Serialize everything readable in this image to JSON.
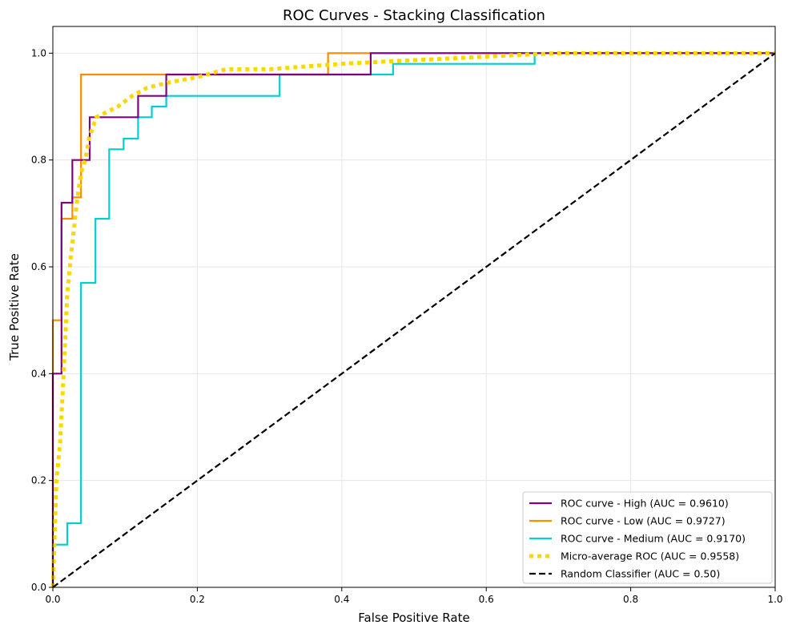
{
  "chart_data": {
    "type": "line",
    "title": "ROC Curves - Stacking Classification",
    "xlabel": "False Positive Rate",
    "ylabel": "True Positive Rate",
    "xlim": [
      0,
      1
    ],
    "ylim": [
      0,
      1.05
    ],
    "xticks": [
      "0.0",
      "0.2",
      "0.4",
      "0.6",
      "0.8",
      "1.0"
    ],
    "yticks": [
      "0.0",
      "0.2",
      "0.4",
      "0.6",
      "0.8",
      "1.0"
    ],
    "grid": true,
    "legend_position": "lower right",
    "series": [
      {
        "name": "ROC curve - High (AUC = 0.9610)",
        "color": "#800080",
        "style": "solid",
        "x": [
          0,
          0,
          0.012,
          0.012,
          0.027,
          0.027,
          0.051,
          0.051,
          0.118,
          0.118,
          0.157,
          0.157,
          0.44,
          0.44,
          1
        ],
        "y": [
          0,
          0.4,
          0.4,
          0.72,
          0.72,
          0.8,
          0.8,
          0.88,
          0.88,
          0.92,
          0.92,
          0.96,
          0.96,
          1.0,
          1.0
        ]
      },
      {
        "name": "ROC curve - Low (AUC = 0.9727)",
        "color": "#ff8c00",
        "style": "solid",
        "x": [
          0,
          0,
          0.012,
          0.012,
          0.027,
          0.027,
          0.039,
          0.039,
          0.381,
          0.381,
          1
        ],
        "y": [
          0,
          0.5,
          0.5,
          0.69,
          0.69,
          0.73,
          0.73,
          0.96,
          0.96,
          1.0,
          1.0
        ]
      },
      {
        "name": "ROC curve - Medium (AUC = 0.9170)",
        "color": "#00ced1",
        "style": "solid",
        "x": [
          0,
          0,
          0.02,
          0.02,
          0.039,
          0.039,
          0.059,
          0.059,
          0.078,
          0.078,
          0.098,
          0.098,
          0.118,
          0.118,
          0.137,
          0.137,
          0.157,
          0.157,
          0.314,
          0.314,
          0.471,
          0.471,
          0.667,
          0.667,
          1
        ],
        "y": [
          0,
          0.08,
          0.08,
          0.12,
          0.12,
          0.57,
          0.57,
          0.69,
          0.69,
          0.82,
          0.82,
          0.84,
          0.84,
          0.88,
          0.88,
          0.9,
          0.9,
          0.92,
          0.92,
          0.96,
          0.96,
          0.98,
          0.98,
          1.0,
          1.0
        ]
      },
      {
        "name": "Micro-average ROC (AUC = 0.9558)",
        "color": "#ffd700",
        "style": "dotted",
        "x": [
          0,
          0.005,
          0.01,
          0.015,
          0.02,
          0.025,
          0.03,
          0.035,
          0.04,
          0.045,
          0.05,
          0.06,
          0.075,
          0.09,
          0.11,
          0.13,
          0.16,
          0.2,
          0.24,
          0.3,
          0.35,
          0.4,
          0.47,
          0.55,
          0.62,
          0.7,
          0.8,
          0.9,
          1.0
        ],
        "y": [
          0,
          0.2,
          0.27,
          0.4,
          0.55,
          0.62,
          0.68,
          0.74,
          0.78,
          0.8,
          0.84,
          0.88,
          0.89,
          0.9,
          0.92,
          0.935,
          0.945,
          0.955,
          0.97,
          0.97,
          0.975,
          0.98,
          0.985,
          0.99,
          0.995,
          1.0,
          1.0,
          1.0,
          1.0
        ]
      },
      {
        "name": "Random Classifier (AUC = 0.50)",
        "color": "#000000",
        "style": "dashed",
        "x": [
          0,
          1
        ],
        "y": [
          0,
          1
        ]
      }
    ]
  }
}
